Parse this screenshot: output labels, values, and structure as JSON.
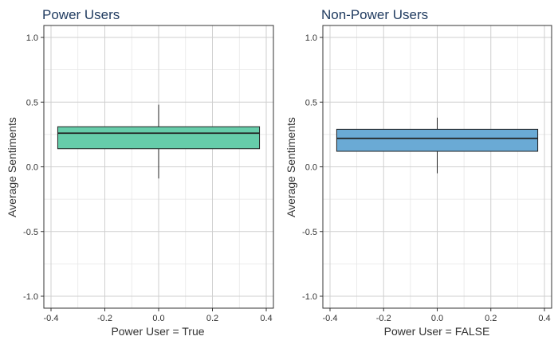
{
  "chart_data": [
    {
      "type": "boxplot",
      "title": "Power Users",
      "xlabel": "Power User = True",
      "ylabel": "Average Sentiments",
      "xlim": [
        -0.4,
        0.4
      ],
      "ylim": [
        -1.0,
        1.0
      ],
      "xticks": [
        "-0.4",
        "-0.2",
        "0.0",
        "0.2",
        "0.4"
      ],
      "yticks": [
        "-1.0",
        "-0.5",
        "0.0",
        "0.5",
        "1.0"
      ],
      "grid": true,
      "fill_color": "#66cdaa",
      "box": {
        "x_left": -0.375,
        "x_right": 0.375,
        "min": -0.09,
        "q1": 0.14,
        "median": 0.26,
        "q3": 0.31,
        "max": 0.48
      }
    },
    {
      "type": "boxplot",
      "title": "Non-Power Users",
      "xlabel": "Power User = FALSE",
      "ylabel": "Average Sentiments",
      "xlim": [
        -0.4,
        0.4
      ],
      "ylim": [
        -1.0,
        1.0
      ],
      "xticks": [
        "-0.4",
        "-0.2",
        "0.0",
        "0.2",
        "0.4"
      ],
      "yticks": [
        "-1.0",
        "-0.5",
        "0.0",
        "0.5",
        "1.0"
      ],
      "grid": true,
      "fill_color": "#6aaad5",
      "box": {
        "x_left": -0.375,
        "x_right": 0.375,
        "min": -0.05,
        "q1": 0.12,
        "median": 0.22,
        "q3": 0.29,
        "max": 0.38
      }
    }
  ]
}
